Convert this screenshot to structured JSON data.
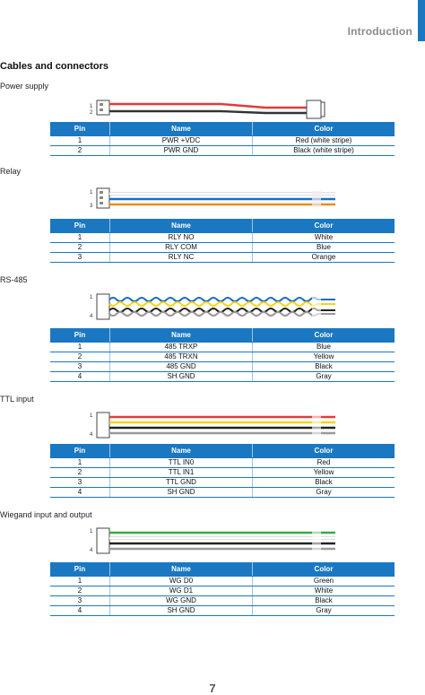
{
  "header": {
    "title": "Introduction",
    "accent_color": "#1a78c2"
  },
  "section_title": "Cables and connectors",
  "sections": [
    {
      "title": "Power supply",
      "pin_labels": [
        "1",
        "2"
      ],
      "wires": [
        "#e23b3b",
        "#333333"
      ],
      "columns": [
        "Pin",
        "Name",
        "Color"
      ],
      "rows": [
        [
          "1",
          "PWR +VDC",
          "Red (white stripe)"
        ],
        [
          "2",
          "PWR GND",
          "Black (white stripe)"
        ]
      ]
    },
    {
      "title": "Relay",
      "pin_labels": [
        "1",
        "3"
      ],
      "wires": [
        "#ffffff",
        "#1a6fc2",
        "#f08a1c"
      ],
      "columns": [
        "Pin",
        "Name",
        "Color"
      ],
      "rows": [
        [
          "1",
          "RLY NO",
          "White"
        ],
        [
          "2",
          "RLY COM",
          "Blue"
        ],
        [
          "3",
          "RLY NC",
          "Orange"
        ]
      ]
    },
    {
      "title": "RS-485",
      "pin_labels": [
        "1",
        "4"
      ],
      "wires": [
        "#1a6fc2",
        "#f3d51a",
        "#222222",
        "#999999"
      ],
      "columns": [
        "Pin",
        "Name",
        "Color"
      ],
      "rows": [
        [
          "1",
          "485 TRXP",
          "Blue"
        ],
        [
          "2",
          "485 TRXN",
          "Yellow"
        ],
        [
          "3",
          "485 GND",
          "Black"
        ],
        [
          "4",
          "SH GND",
          "Gray"
        ]
      ]
    },
    {
      "title": "TTL input",
      "pin_labels": [
        "1",
        "4"
      ],
      "wires": [
        "#e23b3b",
        "#f3d51a",
        "#222222",
        "#999999"
      ],
      "columns": [
        "Pin",
        "Name",
        "Color"
      ],
      "rows": [
        [
          "1",
          "TTL IN0",
          "Red"
        ],
        [
          "2",
          "TTL IN1",
          "Yellow"
        ],
        [
          "3",
          "TTL GND",
          "Black"
        ],
        [
          "4",
          "SH GND",
          "Gray"
        ]
      ]
    },
    {
      "title": "Wiegand input and output",
      "pin_labels": [
        "1",
        "4"
      ],
      "wires": [
        "#3aa84a",
        "#ffffff",
        "#222222",
        "#999999"
      ],
      "columns": [
        "Pin",
        "Name",
        "Color"
      ],
      "rows": [
        [
          "1",
          "WG D0",
          "Green"
        ],
        [
          "2",
          "WG D1",
          "White"
        ],
        [
          "3",
          "WG GND",
          "Black"
        ],
        [
          "4",
          "SH GND",
          "Gray"
        ]
      ]
    }
  ],
  "page_number": "7"
}
